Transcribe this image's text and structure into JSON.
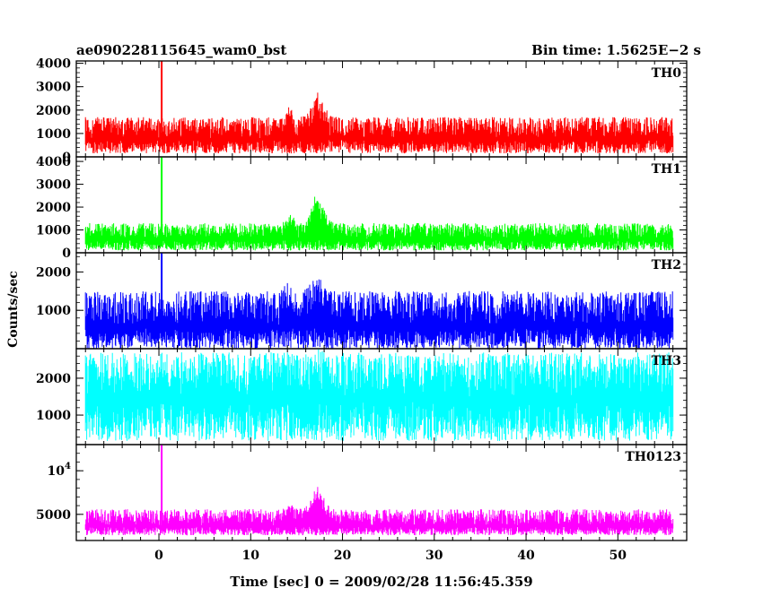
{
  "header": {
    "title": "ae090228115645_wam0_bst",
    "bin_time": "Bin time: 1.5625E−2 s"
  },
  "chart_data": {
    "type": "line",
    "title": "ae090228115645_wam0_bst",
    "xlabel": "Time [sec] 0 = 2009/02/28 11:56:45.359",
    "ylabel": "Counts/sec",
    "xlim": [
      -9,
      57.5
    ],
    "data_x_range": [
      -8,
      56
    ],
    "bin_time_s": 0.015625,
    "grid": false,
    "x_ticks": [
      0,
      10,
      20,
      30,
      40,
      50
    ],
    "x_tick_labels": [
      "0",
      "10",
      "20",
      "30",
      "40",
      "50"
    ],
    "panels": [
      {
        "name": "TH0",
        "color": "#ff0000",
        "ylim": [
          0,
          4100
        ],
        "y_ticks": [
          0,
          1000,
          2000,
          3000,
          4000
        ],
        "y_tick_labels": [
          "0",
          "1000",
          "2000",
          "3000",
          "4000"
        ],
        "baseline": 800,
        "noise_low": 150,
        "noise_high": 1700,
        "burst": {
          "time": 17.3,
          "peak": 2800
        },
        "precursor": {
          "time": 14.2,
          "peak": 2300
        },
        "spike": {
          "time": 0.3,
          "peak": 4100
        }
      },
      {
        "name": "TH1",
        "color": "#00ff00",
        "ylim": [
          0,
          4200
        ],
        "y_ticks": [
          0,
          1000,
          2000,
          3000,
          4000
        ],
        "y_tick_labels": [
          "0",
          "1000",
          "2000",
          "3000",
          "4000"
        ],
        "baseline": 600,
        "noise_low": 100,
        "noise_high": 1300,
        "burst": {
          "time": 17.3,
          "peak": 2700
        },
        "precursor": {
          "time": 14.2,
          "peak": 1800
        },
        "spike": {
          "time": 0.3,
          "peak": 4200
        }
      },
      {
        "name": "TH2",
        "color": "#0000ff",
        "ylim": [
          0,
          2500
        ],
        "y_ticks": [
          1000,
          2000
        ],
        "y_tick_labels": [
          "1000",
          "2000"
        ],
        "baseline": 600,
        "noise_low": 0,
        "noise_high": 1500,
        "burst": {
          "time": 17.3,
          "peak": 2100
        },
        "precursor": {
          "time": 14.2,
          "peak": 1800
        },
        "spike": {
          "time": 0.3,
          "peak": 2500
        }
      },
      {
        "name": "TH3",
        "color": "#00ffff",
        "ylim": [
          200,
          2800
        ],
        "y_ticks": [
          1000,
          2000
        ],
        "y_tick_labels": [
          "1000",
          "2000"
        ],
        "baseline": 1500,
        "noise_low": 300,
        "noise_high": 2700,
        "burst": {
          "time": 17.3,
          "peak": 2800
        },
        "precursor": {
          "time": 14.2,
          "peak": 2600
        },
        "spike": null
      },
      {
        "name": "TH0123",
        "color": "#ff00ff",
        "ylim": [
          2000,
          13000
        ],
        "y_ticks": [
          5000,
          10000
        ],
        "y_tick_labels": [
          "5000",
          "10^4"
        ],
        "baseline": 3700,
        "noise_low": 2600,
        "noise_high": 5600,
        "burst": {
          "time": 17.3,
          "peak": 8700
        },
        "precursor": {
          "time": 14.2,
          "peak": 6400
        },
        "spike": {
          "time": 0.3,
          "peak": 13000
        }
      }
    ]
  }
}
